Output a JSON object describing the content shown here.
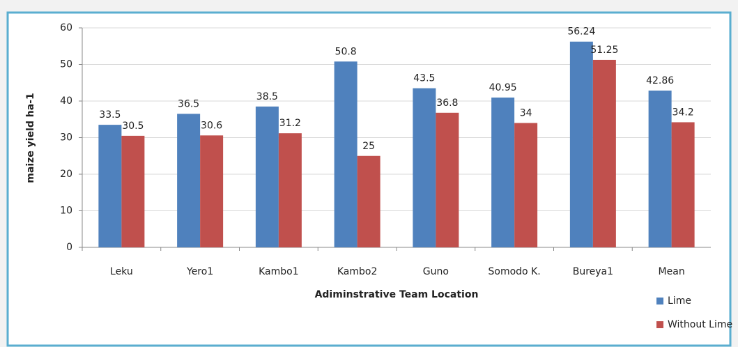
{
  "chart_data": {
    "type": "bar",
    "categories": [
      "Leku",
      "Yero1",
      "Kambo1",
      "Kambo2",
      "Guno",
      "Somodo K.",
      "Bureya1",
      "Mean"
    ],
    "series": [
      {
        "name": "Lime",
        "color": "#4f81bd",
        "values": [
          33.5,
          36.5,
          38.5,
          50.8,
          43.5,
          40.95,
          56.24,
          42.86
        ]
      },
      {
        "name": "Without Lime",
        "color": "#c0504d",
        "values": [
          30.5,
          30.6,
          31.2,
          25,
          36.8,
          34,
          51.25,
          34.2
        ]
      }
    ],
    "xlabel": "Adiminstrative Team Location",
    "ylabel": "maize yield ha-1",
    "ylim": [
      0,
      60
    ],
    "yticks": [
      0,
      10,
      20,
      30,
      40,
      50,
      60
    ],
    "grid": true,
    "legend": "bottom-right"
  }
}
